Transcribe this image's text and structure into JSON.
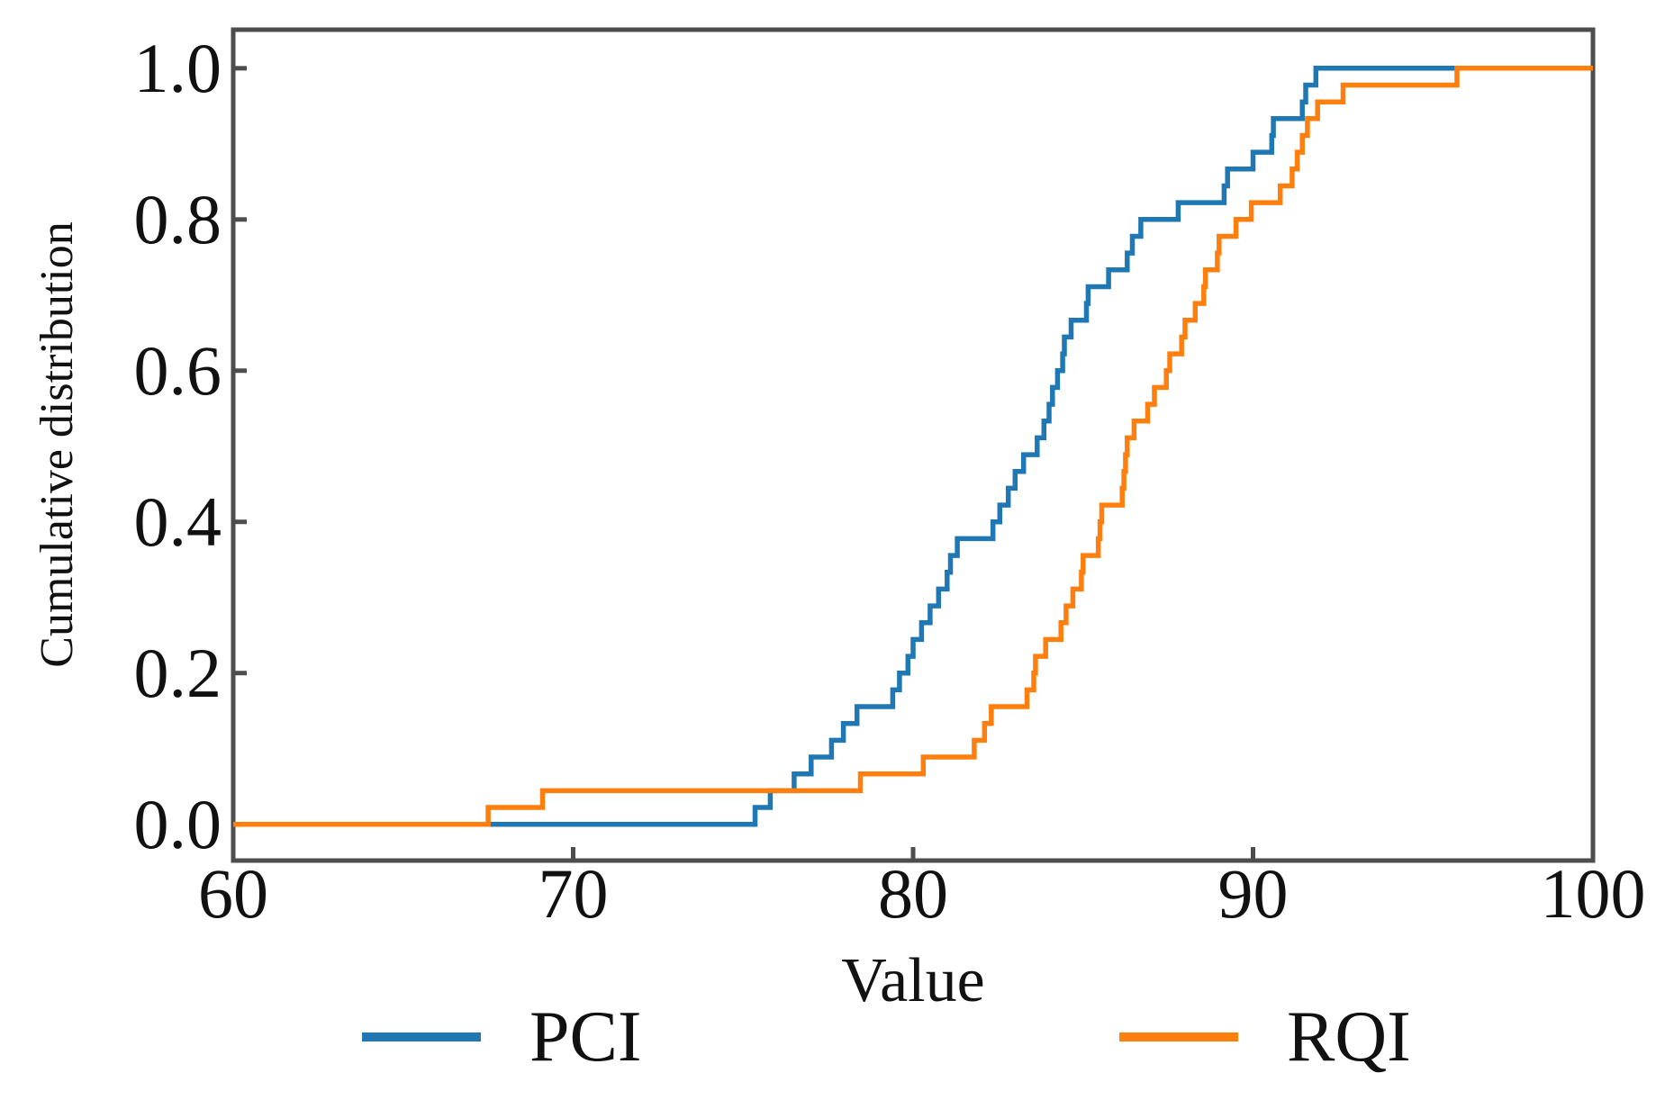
{
  "figure": {
    "background": "#ffffff",
    "text_color": "#111111",
    "spine_color": "#4d4d4d"
  },
  "axes": {
    "xlabel": "Value",
    "ylabel": "Cumulative distribution",
    "x_tick_labels": [
      "60",
      "70",
      "80",
      "90",
      "100"
    ],
    "y_tick_labels": [
      "1.0",
      "0.8",
      "0.6",
      "0.4",
      "0.2",
      "0.0"
    ]
  },
  "legend": {
    "entries": [
      {
        "label": "PCI",
        "color": "#1f77b4"
      },
      {
        "label": "RQI",
        "color": "#ff7f0e"
      }
    ]
  },
  "chart_data": {
    "type": "line",
    "subtype": "ecdf_step",
    "title": "",
    "xlabel": "Value",
    "ylabel": "Cumulative distribution",
    "xlim": [
      60,
      100
    ],
    "ylim": [
      -0.048,
      1.051
    ],
    "x_ticks": [
      60,
      70,
      80,
      90,
      100
    ],
    "y_ticks": [
      0.0,
      0.2,
      0.4,
      0.6,
      0.8,
      1.0
    ],
    "grid": false,
    "legend_position": "below-axes",
    "line_width": 5.5,
    "note": "Empirical CDFs; each series steps up by 1/45 at each sample value; curves start at x=60,y=0 and extend to x=100,y=1. Sample values estimated from pixel positions.",
    "series": [
      {
        "name": "PCI",
        "color": "#1f77b4",
        "n": 45,
        "samples": [
          75.35,
          75.8,
          76.5,
          77.0,
          77.6,
          77.95,
          78.35,
          79.4,
          79.6,
          79.85,
          80.0,
          80.25,
          80.5,
          80.75,
          81.0,
          81.1,
          81.3,
          82.35,
          82.55,
          82.8,
          83.0,
          83.25,
          83.65,
          83.85,
          84.0,
          84.1,
          84.25,
          84.4,
          84.45,
          84.65,
          85.1,
          85.15,
          85.75,
          86.3,
          86.45,
          86.7,
          87.8,
          89.15,
          89.25,
          90.0,
          90.55,
          90.6,
          91.45,
          91.55,
          91.85
        ]
      },
      {
        "name": "RQI",
        "color": "#ff7f0e",
        "n": 45,
        "samples": [
          67.5,
          69.1,
          78.45,
          80.3,
          81.8,
          82.1,
          82.3,
          83.35,
          83.55,
          83.6,
          83.9,
          84.35,
          84.5,
          84.7,
          84.95,
          85.0,
          85.45,
          85.5,
          85.55,
          86.15,
          86.2,
          86.25,
          86.3,
          86.5,
          86.9,
          87.1,
          87.45,
          87.55,
          87.9,
          88.0,
          88.3,
          88.55,
          88.6,
          88.95,
          89.0,
          89.5,
          89.95,
          90.8,
          91.15,
          91.3,
          91.45,
          91.6,
          91.9,
          92.65,
          96.0
        ]
      }
    ]
  }
}
